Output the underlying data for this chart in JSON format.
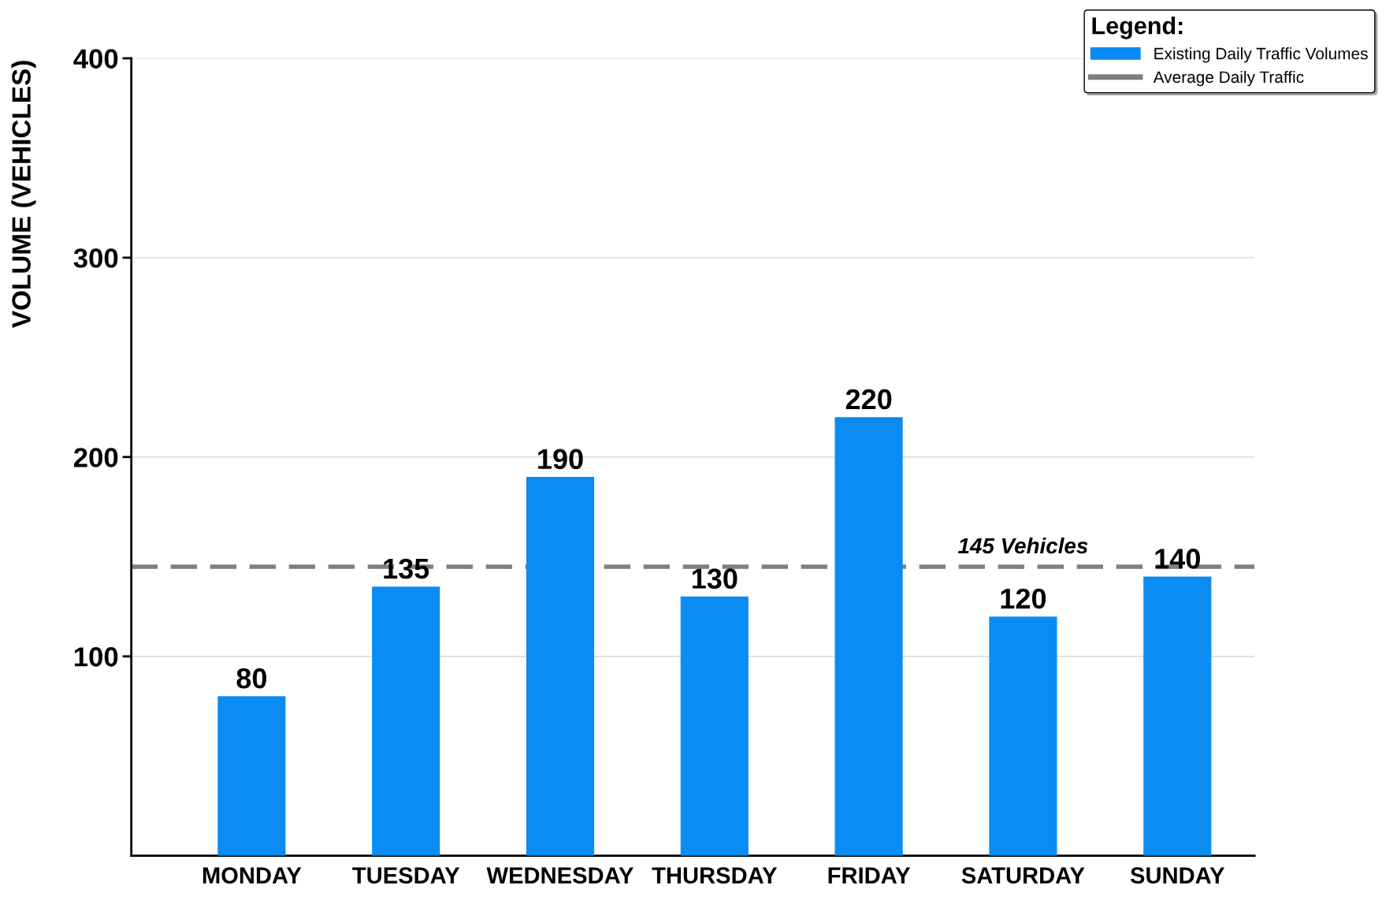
{
  "chart_data": {
    "type": "bar",
    "ylabel": "VOLUME (VEHICLES)",
    "legend_title": "Legend:",
    "categories": [
      "MONDAY",
      "TUESDAY",
      "WEDNESDAY",
      "THURSDAY",
      "FRIDAY",
      "SATURDAY",
      "SUNDAY"
    ],
    "series": [
      {
        "name": "Existing Daily Traffic Volumes",
        "color": "#0a8cf2",
        "values": [
          80,
          135,
          190,
          130,
          220,
          120,
          140
        ]
      }
    ],
    "ylim": [
      0,
      400
    ],
    "yticks": [
      100,
      200,
      300,
      400
    ],
    "grid": "y",
    "data_labels": true,
    "legend": "top right",
    "ref_lines": [
      {
        "axis": "y",
        "value": 145,
        "label": "Average Daily Traffic",
        "color": "#7f7f7f",
        "line_style": "dashed"
      }
    ],
    "annotations": [
      {
        "text": "145 Vehicles",
        "x": "SATURDAY",
        "y": 145
      }
    ]
  }
}
